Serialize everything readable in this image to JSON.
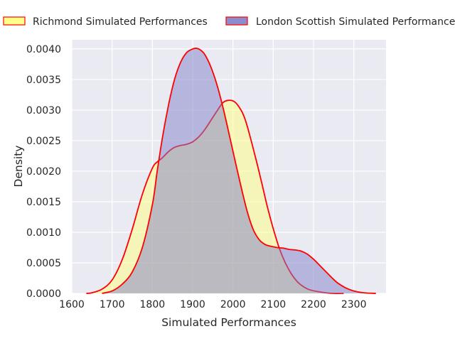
{
  "chart_data": {
    "type": "area",
    "title": "",
    "xlabel": "Simulated Performances",
    "ylabel": "Density",
    "xlim": [
      1600,
      2380
    ],
    "ylim": [
      0,
      0.00415
    ],
    "x_ticks": [
      1600,
      1700,
      1800,
      1900,
      2000,
      2100,
      2200,
      2300
    ],
    "y_ticks": [
      "0.0000",
      "0.0005",
      "0.0010",
      "0.0015",
      "0.0020",
      "0.0025",
      "0.0030",
      "0.0035",
      "0.0040"
    ],
    "grid": true,
    "legend_position": "top",
    "line_color": "#ff0000",
    "background_color": "#eaeaf2",
    "series": [
      {
        "name": "Richmond Simulated Performances",
        "fill_color": "#ffff80",
        "x": [
          1636,
          1650,
          1675,
          1700,
          1725,
          1750,
          1775,
          1800,
          1812,
          1825,
          1840,
          1855,
          1870,
          1885,
          1900,
          1915,
          1930,
          1945,
          1960,
          1975,
          1990,
          2005,
          2020,
          2030,
          2040,
          2055,
          2070,
          2085,
          2100,
          2115,
          2130,
          2145,
          2160,
          2175,
          2190,
          2210,
          2230,
          2250,
          2275
        ],
        "y": [
          0.0,
          1e-05,
          7e-05,
          0.00022,
          0.00055,
          0.00105,
          0.00162,
          0.00205,
          0.00215,
          0.00222,
          0.00232,
          0.00239,
          0.00242,
          0.00244,
          0.00248,
          0.00256,
          0.00268,
          0.00283,
          0.00298,
          0.00312,
          0.00316,
          0.00313,
          0.003,
          0.00285,
          0.00263,
          0.00225,
          0.00185,
          0.00143,
          0.00106,
          0.00074,
          0.0005,
          0.00032,
          0.00019,
          0.00011,
          6e-05,
          3e-05,
          1e-05,
          0.0,
          0.0
        ]
      },
      {
        "name": "London Scottish Simulated Performances",
        "fill_color": "#8080c8",
        "x": [
          1675,
          1700,
          1725,
          1750,
          1775,
          1800,
          1812,
          1825,
          1840,
          1855,
          1870,
          1885,
          1900,
          1910,
          1920,
          1930,
          1945,
          1960,
          1975,
          1990,
          2005,
          2020,
          2035,
          2050,
          2065,
          2080,
          2095,
          2110,
          2125,
          2140,
          2155,
          2170,
          2185,
          2200,
          2215,
          2230,
          2245,
          2260,
          2280,
          2300,
          2325,
          2355
        ],
        "y": [
          0.0,
          4e-05,
          0.00015,
          0.00035,
          0.00075,
          0.00145,
          0.002,
          0.00255,
          0.00308,
          0.0035,
          0.00378,
          0.00394,
          0.004,
          0.00401,
          0.00398,
          0.00391,
          0.00371,
          0.00342,
          0.00305,
          0.00262,
          0.00218,
          0.00175,
          0.00135,
          0.00105,
          0.00088,
          0.0008,
          0.00077,
          0.00075,
          0.00074,
          0.00072,
          0.00071,
          0.00069,
          0.00064,
          0.00056,
          0.00046,
          0.00036,
          0.00026,
          0.00017,
          9e-05,
          4e-05,
          1e-05,
          0.0
        ]
      }
    ]
  }
}
